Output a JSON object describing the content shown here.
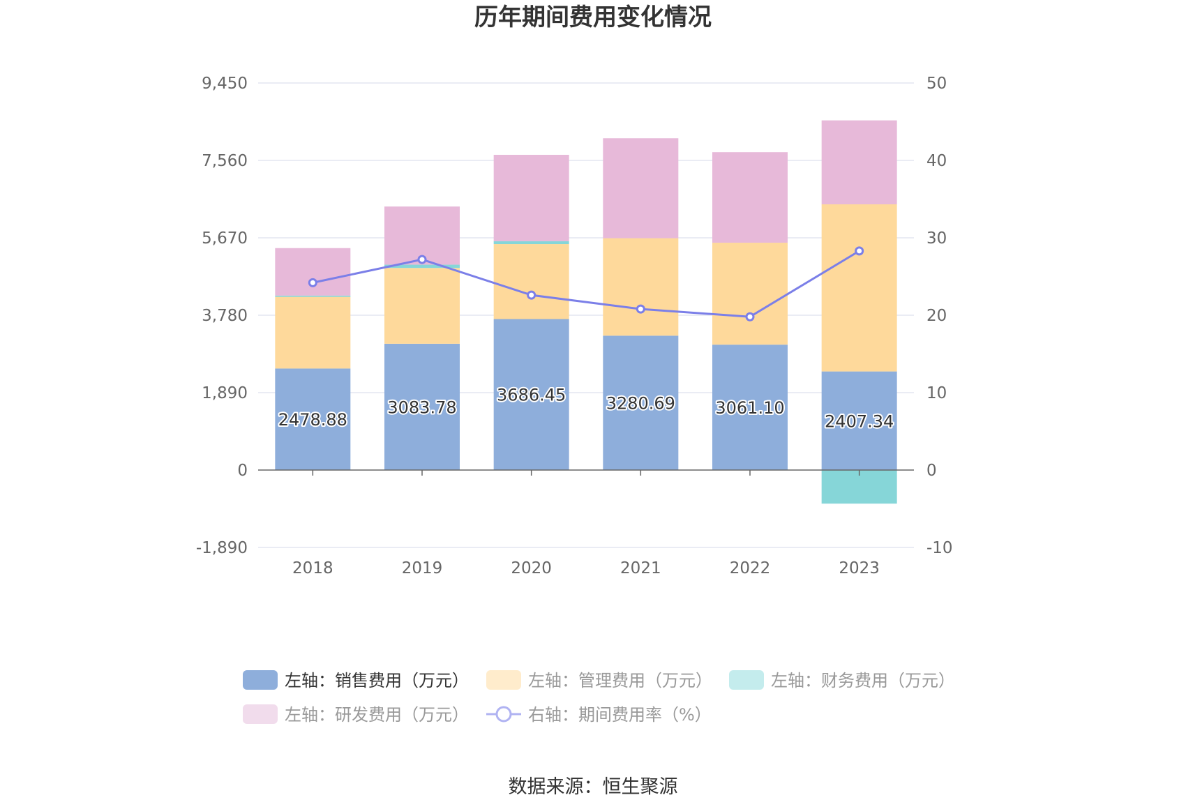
{
  "chart_data": {
    "type": "bar",
    "stacked": true,
    "title": "历年期间费用变化情况",
    "categories": [
      "2018",
      "2019",
      "2020",
      "2021",
      "2022",
      "2023"
    ],
    "left_axis": {
      "ticks": [
        "9,450",
        "7,560",
        "5,670",
        "3,780",
        "1,890",
        "0",
        "-1,890"
      ],
      "range": [
        -1890,
        9450
      ]
    },
    "right_axis": {
      "ticks": [
        "50",
        "40",
        "30",
        "20",
        "10",
        "0",
        "-10"
      ],
      "range": [
        -10,
        50
      ]
    },
    "series": [
      {
        "name": "左轴：销售费用（万元）",
        "axis": "left",
        "color": "#8eaedb",
        "values": [
          2478.88,
          3083.78,
          3686.45,
          3280.69,
          3061.1,
          2407.34
        ],
        "labels": [
          "2478.88",
          "3083.78",
          "3686.45",
          "3280.69",
          "3061.10",
          "2407.34"
        ]
      },
      {
        "name": "左轴：管理费用（万元）",
        "axis": "left",
        "color": "#fed99b",
        "values": [
          1750,
          1850,
          1830,
          2380,
          2490,
          4080
        ]
      },
      {
        "name": "左轴：财务费用（万元）",
        "axis": "left",
        "color": "#86d6d8",
        "values": [
          30,
          80,
          70,
          0,
          0,
          -820
        ]
      },
      {
        "name": "左轴：研发费用（万元）",
        "axis": "left",
        "color": "#e7b9d9",
        "values": [
          1160,
          1420,
          2110,
          2440,
          2210,
          2050
        ]
      },
      {
        "name": "右轴：期间费用率（%）",
        "axis": "right",
        "type": "line",
        "color": "#7b7fe8",
        "values": [
          24.2,
          27.2,
          22.6,
          20.8,
          19.8,
          28.3
        ]
      }
    ],
    "legend_position": "bottom",
    "grid": true
  },
  "legend": [
    {
      "label": "左轴：销售费用（万元）",
      "color": "#8eaedb",
      "active": true
    },
    {
      "label": "左轴：管理费用（万元）",
      "color": "#ffeccc",
      "active": false
    },
    {
      "label": "左轴：财务费用（万元）",
      "color": "#c4eced",
      "active": false
    },
    {
      "label": "左轴：研发费用（万元）",
      "color": "#f1dcec",
      "active": false
    },
    {
      "label": "右轴：期间费用率（%）",
      "color": "#b0b3f2",
      "active": false,
      "icon": "line-circle"
    }
  ],
  "source_text": "数据来源：恒生聚源"
}
